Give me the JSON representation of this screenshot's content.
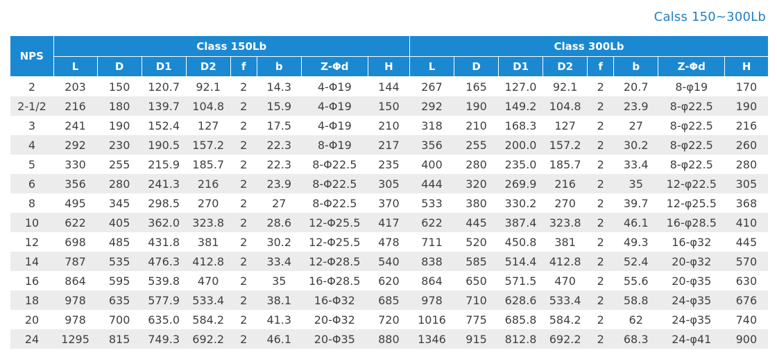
{
  "caption": "Calss 150~300Lb",
  "table": {
    "nps_header": "NPS",
    "groups": [
      "Class 150Lb",
      "Class 300Lb"
    ],
    "columns": [
      "L",
      "D",
      "D1",
      "D2",
      "f",
      "b",
      "Z-Φd",
      "H"
    ],
    "rows": [
      {
        "nps": "2",
        "c150": [
          "203",
          "150",
          "120.7",
          "92.1",
          "2",
          "14.3",
          "4-Φ19",
          "144"
        ],
        "c300": [
          "267",
          "165",
          "127.0",
          "92.1",
          "2",
          "20.7",
          "8-φ19",
          "170"
        ]
      },
      {
        "nps": "2-1/2",
        "c150": [
          "216",
          "180",
          "139.7",
          "104.8",
          "2",
          "15.9",
          "4-Φ19",
          "150"
        ],
        "c300": [
          "292",
          "190",
          "149.2",
          "104.8",
          "2",
          "23.9",
          "8-φ22.5",
          "190"
        ]
      },
      {
        "nps": "3",
        "c150": [
          "241",
          "190",
          "152.4",
          "127",
          "2",
          "17.5",
          "4-Φ19",
          "210"
        ],
        "c300": [
          "318",
          "210",
          "168.3",
          "127",
          "2",
          "27",
          "8-φ22.5",
          "216"
        ]
      },
      {
        "nps": "4",
        "c150": [
          "292",
          "230",
          "190.5",
          "157.2",
          "2",
          "22.3",
          "8-Φ19",
          "217"
        ],
        "c300": [
          "356",
          "255",
          "200.0",
          "157.2",
          "2",
          "30.2",
          "8-φ22.5",
          "260"
        ]
      },
      {
        "nps": "5",
        "c150": [
          "330",
          "255",
          "215.9",
          "185.7",
          "2",
          "22.3",
          "8-Φ22.5",
          "235"
        ],
        "c300": [
          "400",
          "280",
          "235.0",
          "185.7",
          "2",
          "33.4",
          "8-φ22.5",
          "280"
        ]
      },
      {
        "nps": "6",
        "c150": [
          "356",
          "280",
          "241.3",
          "216",
          "2",
          "23.9",
          "8-Φ22.5",
          "305"
        ],
        "c300": [
          "444",
          "320",
          "269.9",
          "216",
          "2",
          "35",
          "12-φ22.5",
          "305"
        ]
      },
      {
        "nps": "8",
        "c150": [
          "495",
          "345",
          "298.5",
          "270",
          "2",
          "27",
          "8-Φ22.5",
          "370"
        ],
        "c300": [
          "533",
          "380",
          "330.2",
          "270",
          "2",
          "39.7",
          "12-φ25.5",
          "368"
        ]
      },
      {
        "nps": "10",
        "c150": [
          "622",
          "405",
          "362.0",
          "323.8",
          "2",
          "28.6",
          "12-Φ25.5",
          "417"
        ],
        "c300": [
          "622",
          "445",
          "387.4",
          "323.8",
          "2",
          "46.1",
          "16-φ28.5",
          "410"
        ]
      },
      {
        "nps": "12",
        "c150": [
          "698",
          "485",
          "431.8",
          "381",
          "2",
          "30.2",
          "12-Φ25.5",
          "478"
        ],
        "c300": [
          "711",
          "520",
          "450.8",
          "381",
          "2",
          "49.3",
          "16-φ32",
          "445"
        ]
      },
      {
        "nps": "14",
        "c150": [
          "787",
          "535",
          "476.3",
          "412.8",
          "2",
          "33.4",
          "12-Φ28.5",
          "540"
        ],
        "c300": [
          "838",
          "585",
          "514.4",
          "412.8",
          "2",
          "52.4",
          "20-φ32",
          "570"
        ]
      },
      {
        "nps": "16",
        "c150": [
          "864",
          "595",
          "539.8",
          "470",
          "2",
          "35",
          "16-Φ28.5",
          "620"
        ],
        "c300": [
          "864",
          "650",
          "571.5",
          "470",
          "2",
          "55.6",
          "20-φ35",
          "630"
        ]
      },
      {
        "nps": "18",
        "c150": [
          "978",
          "635",
          "577.9",
          "533.4",
          "2",
          "38.1",
          "16-Φ32",
          "685"
        ],
        "c300": [
          "978",
          "710",
          "628.6",
          "533.4",
          "2",
          "58.8",
          "24-φ35",
          "676"
        ]
      },
      {
        "nps": "20",
        "c150": [
          "978",
          "700",
          "635.0",
          "584.2",
          "2",
          "41.3",
          "20-Φ32",
          "720"
        ],
        "c300": [
          "1016",
          "775",
          "685.8",
          "584.2",
          "2",
          "62",
          "24-φ35",
          "740"
        ]
      },
      {
        "nps": "24",
        "c150": [
          "1295",
          "815",
          "749.3",
          "692.2",
          "2",
          "46.1",
          "20-Φ35",
          "880"
        ],
        "c300": [
          "1346",
          "915",
          "812.8",
          "692.2",
          "2",
          "68.3",
          "24-φ41",
          "900"
        ]
      }
    ]
  }
}
